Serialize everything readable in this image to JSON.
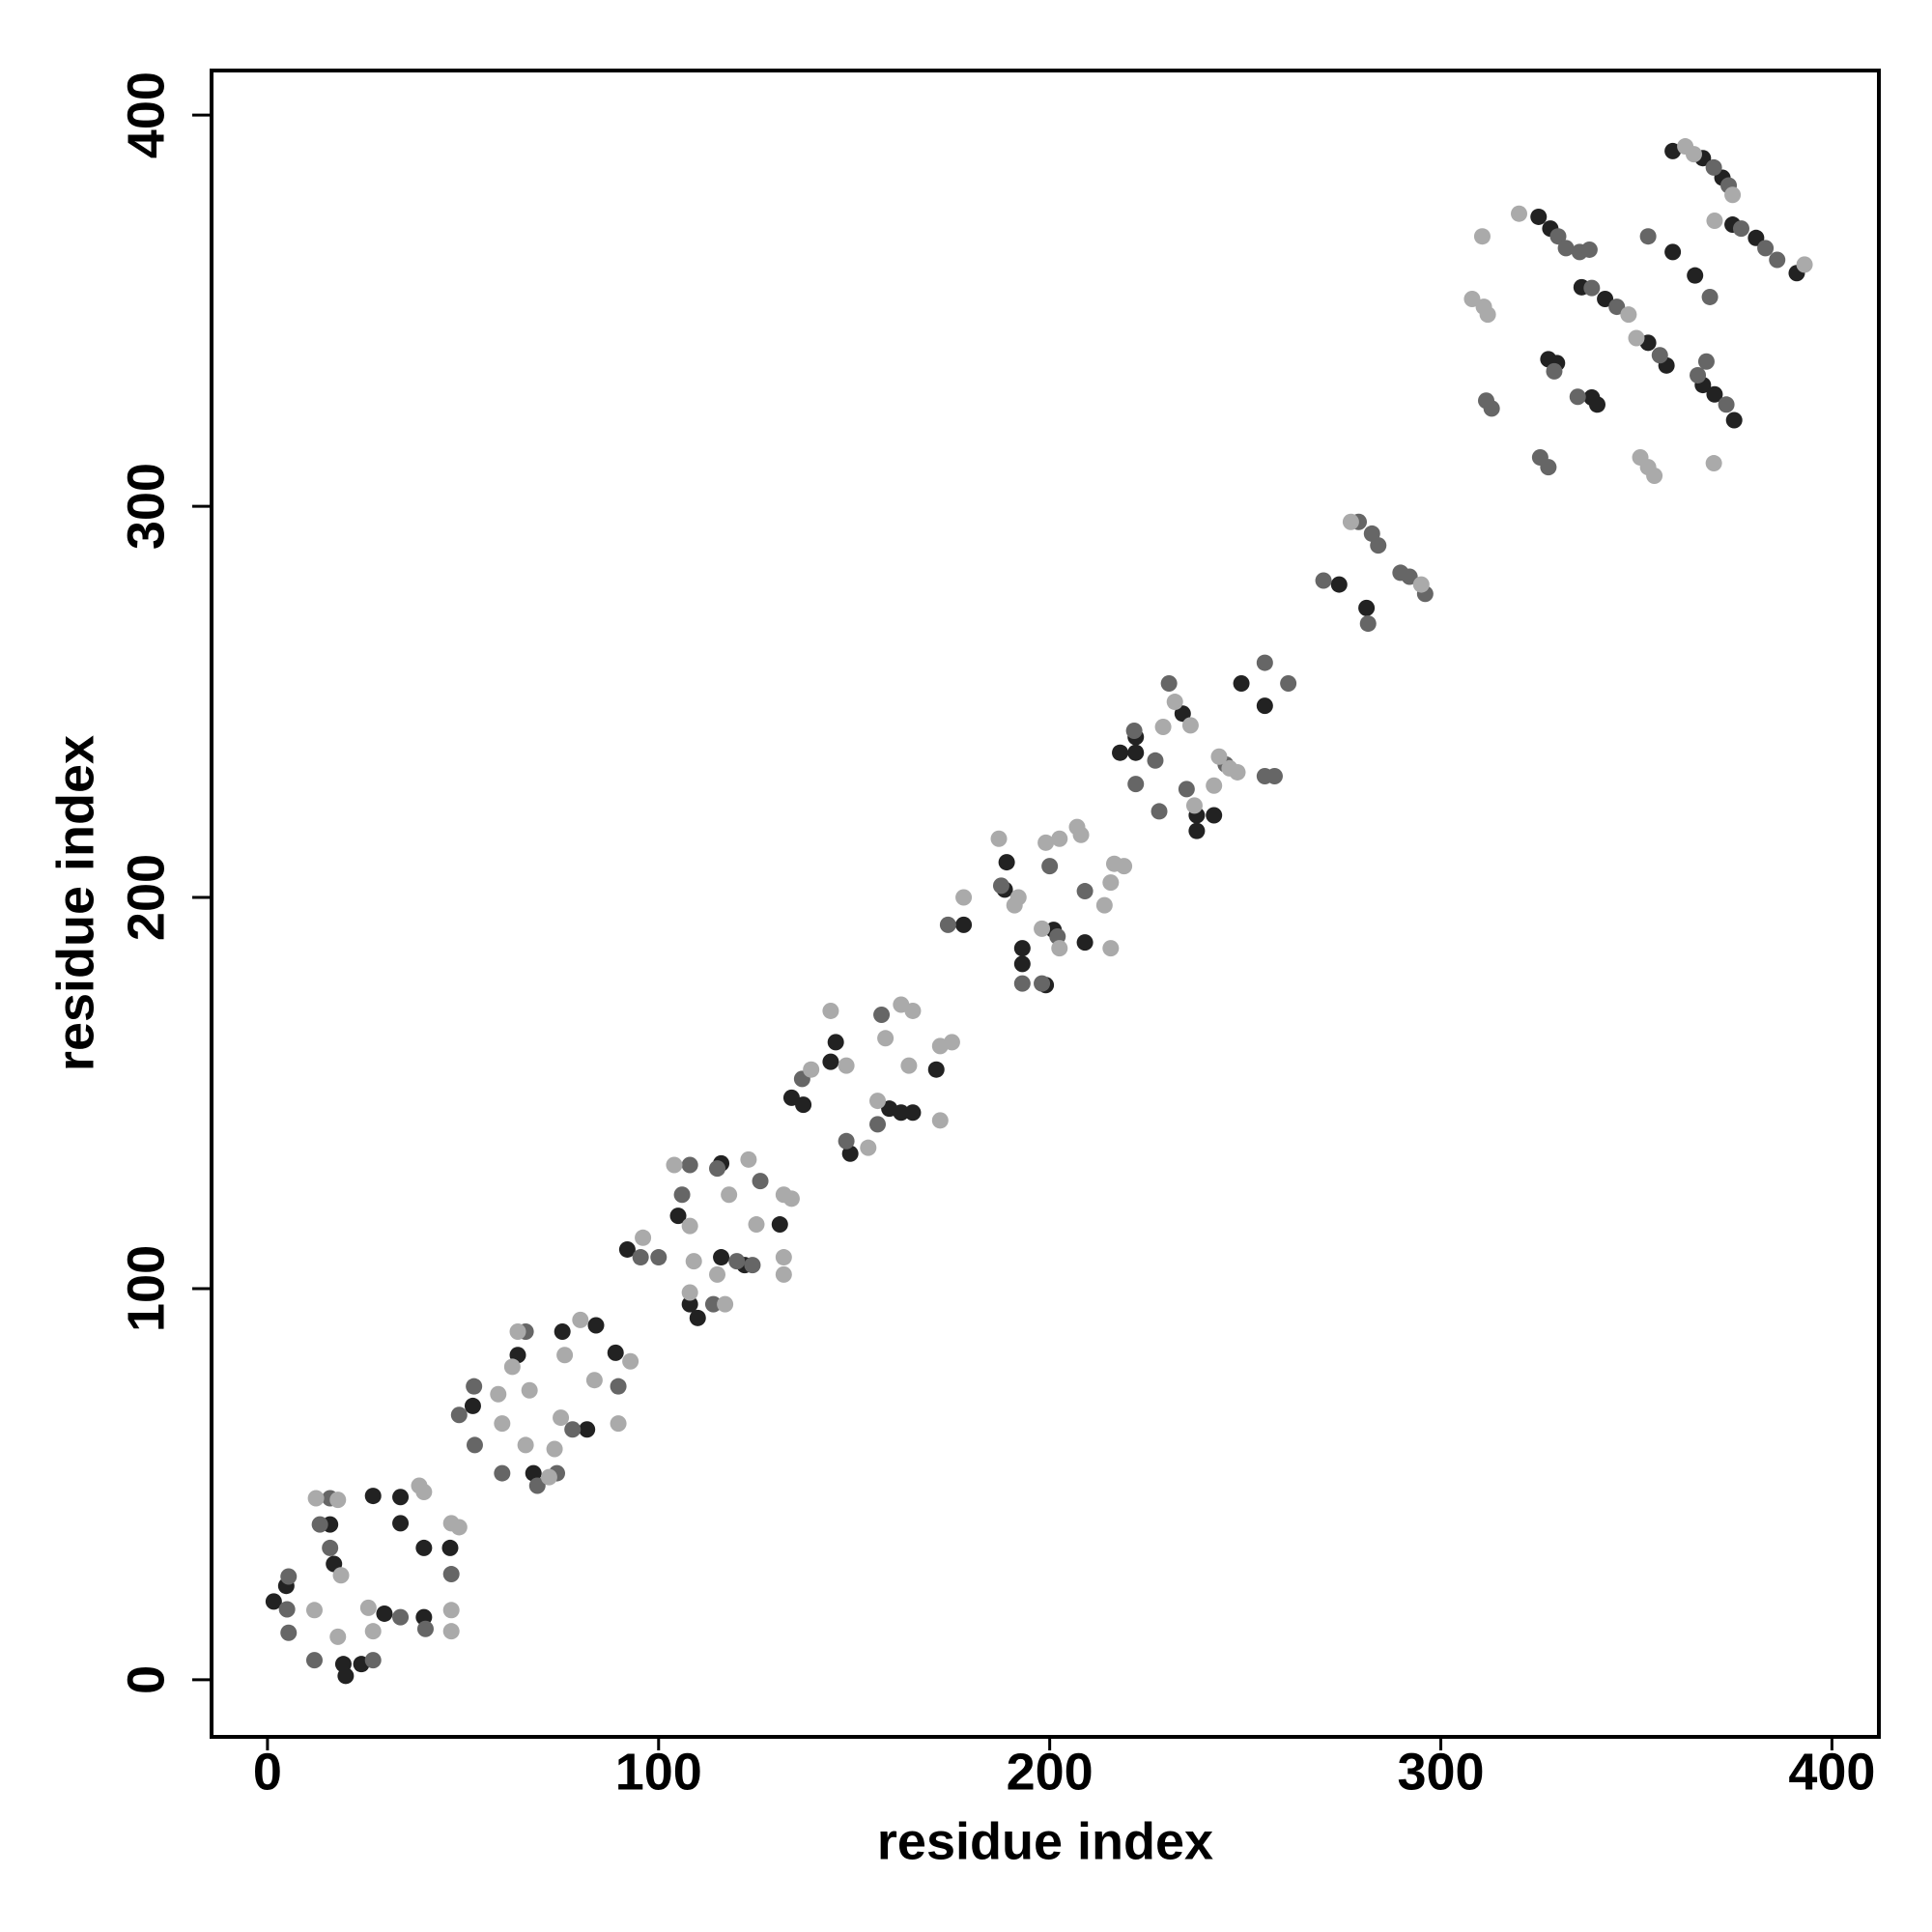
{
  "chart_data": {
    "type": "scatter",
    "xlabel": "residue index",
    "ylabel": "residue index",
    "xlim": [
      -14.3,
      412
    ],
    "ylim": [
      -14.6,
      411.4
    ],
    "xticks": [
      0,
      100,
      200,
      300,
      400
    ],
    "yticks": [
      0,
      100,
      200,
      300,
      400
    ],
    "grid": false,
    "series": [
      {
        "color": "#222222",
        "x": [
          1.6,
          4.8,
          16,
          17,
          19.4,
          20,
          24,
          27,
          29.9,
          34,
          34,
          40,
          40,
          46.7,
          52.5,
          64,
          68,
          75.4,
          81.7,
          84,
          89,
          92,
          105,
          108,
          110,
          116,
          116,
          131,
          122,
          134,
          137,
          145.3,
          144,
          149,
          159,
          162,
          165,
          171,
          178,
          188.5,
          189,
          193,
          193,
          199,
          201,
          209,
          218,
          222,
          222,
          234,
          237.6,
          237.6,
          242,
          249,
          255,
          274,
          281,
          325,
          328,
          327.5,
          329.7,
          338.6,
          340,
          336,
          342,
          353,
          357.7,
          359.3,
          359.3,
          367,
          372,
          365,
          367,
          370,
          375,
          374.6,
          380.6,
          391
        ],
        "values": [
          20,
          24,
          39.7,
          29.6,
          4,
          1,
          4,
          47,
          16.9,
          46.7,
          40,
          33.7,
          16,
          33.7,
          70,
          83,
          52.8,
          89,
          64,
          90.6,
          83.6,
          110,
          118.6,
          96,
          92.5,
          132,
          108,
          116.4,
          106,
          148.8,
          147,
          163,
          158,
          134.5,
          146,
          145,
          145,
          156,
          193,
          202,
          209,
          187,
          183,
          177.6,
          191.7,
          188.5,
          237,
          237,
          241,
          247,
          221,
          217,
          221,
          254.7,
          249,
          280,
          274,
          374,
          371,
          337.6,
          336.6,
          327.8,
          326,
          356,
          353,
          341.8,
          336,
          390.8,
          365,
          389,
          384,
          359,
          331,
          328.6,
          322,
          372,
          368.6,
          359.6
        ]
      },
      {
        "color": "#666666",
        "x": [
          5.4,
          5,
          5.4,
          16,
          13.4,
          16,
          12,
          27,
          34,
          40.4,
          47,
          49,
          52.8,
          53,
          60,
          66,
          69,
          74,
          78,
          89.7,
          95.4,
          100,
          108,
          106,
          114,
          115,
          120,
          126,
          124,
          136.7,
          148,
          156,
          157,
          174,
          187.6,
          193,
          198,
          202,
          200,
          209,
          221.6,
          222,
          227,
          228,
          230.5,
          235,
          245,
          255,
          255,
          257.5,
          261,
          270,
          279,
          281.4,
          282.4,
          284,
          289.7,
          292,
          296,
          311.6,
          313,
          330,
          332,
          335.5,
          329,
          325.4,
          327.5,
          335,
          338,
          338.6,
          345,
          356,
          353,
          369.8,
          373.6,
          365.7,
          373,
          368.8,
          367.9,
          376.8,
          383,
          386
        ],
        "values": [
          26.4,
          18,
          12,
          46.4,
          39.7,
          33.7,
          5,
          5,
          16,
          13,
          27,
          67.7,
          75,
          60,
          52.8,
          89,
          49.6,
          52.8,
          64,
          75,
          108,
          108,
          131.6,
          124,
          96,
          130.7,
          107,
          127.5,
          106,
          153.6,
          137.7,
          142,
          170,
          193,
          203,
          178,
          178,
          190,
          208,
          201.6,
          242.6,
          229,
          235,
          222,
          254.7,
          227.7,
          234,
          260,
          231,
          231,
          254.7,
          281,
          296,
          270,
          293,
          290,
          283,
          282,
          277.6,
          327,
          325,
          369,
          366,
          365,
          334.5,
          312.5,
          310,
          328,
          365.6,
          355.8,
          351,
          338.6,
          369,
          386.6,
          382,
          333.5,
          326,
          353.5,
          337,
          371,
          366,
          363
        ]
      },
      {
        "color": "#aaaaaa",
        "x": [
          12.4,
          18,
          18.8,
          12,
          18,
          25.8,
          27,
          38.8,
          40,
          47,
          49,
          47,
          47,
          59,
          60,
          62.6,
          64,
          66,
          67,
          72,
          73.4,
          75,
          76,
          80,
          83.6,
          92.8,
          89.7,
          96,
          104,
          108,
          109,
          108,
          117,
          118,
          115,
          123,
          125,
          132,
          134,
          132,
          132,
          139,
          144,
          148,
          153.6,
          156,
          158,
          162,
          165,
          164,
          172,
          175,
          172,
          178,
          187,
          192,
          191,
          198,
          202.5,
          202.5,
          199,
          207,
          208,
          214,
          215.6,
          216.5,
          219,
          215.6,
          229,
          232,
          236,
          237,
          242,
          243.3,
          246,
          248,
          277,
          295,
          308,
          311,
          312,
          310.6,
          320,
          348,
          350,
          351,
          353,
          354.6,
          362.5,
          364.7,
          374.6,
          369.8,
          370,
          393
        ],
        "values": [
          46.4,
          46,
          26.7,
          17.8,
          11,
          18.4,
          12.4,
          49.6,
          48,
          40,
          39,
          17.8,
          12.4,
          73,
          65.5,
          80,
          89,
          60,
          74,
          51.8,
          59,
          67,
          83,
          92,
          76.6,
          81.4,
          65.5,
          113,
          131.6,
          116,
          107,
          99,
          96,
          124,
          103.6,
          133,
          116.4,
          124,
          123,
          108,
          103.6,
          156,
          171,
          157,
          136,
          148,
          164,
          172.6,
          171,
          157,
          162,
          163,
          143,
          200,
          215,
          200,
          198,
          192,
          187,
          215,
          214,
          218,
          216,
          198,
          203.8,
          208.6,
          208,
          187,
          243.6,
          250,
          244,
          223.5,
          228.6,
          236,
          233,
          232,
          296,
          280,
          353,
          351,
          349,
          369,
          374.8,
          349,
          343,
          312.5,
          310,
          307.8,
          392,
          390,
          379.6,
          311,
          373,
          361.8
        ]
      }
    ]
  }
}
